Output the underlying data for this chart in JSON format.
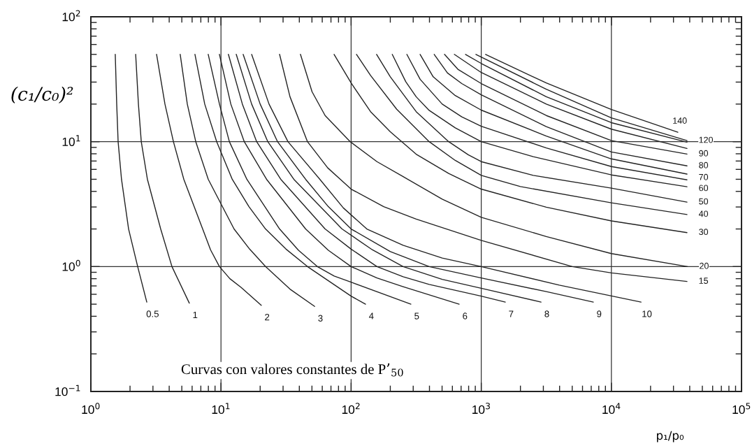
{
  "chart_data": {
    "type": "line",
    "xlabel": "p₁/p₀",
    "ylabel": "(c₁/c₀)²",
    "log": "xy",
    "grid": true,
    "xlim": [
      1,
      100000
    ],
    "ylim": [
      0.1,
      100
    ],
    "xticks": [
      {
        "value": 1,
        "label": "10$^{0}$"
      },
      {
        "value": 10,
        "label": "10$^{1}$"
      },
      {
        "value": 100,
        "label": "10$^{2}$"
      },
      {
        "value": 1000,
        "label": "10$^{3}$"
      },
      {
        "value": 10000,
        "label": "10$^{4}$"
      },
      {
        "value": 100000,
        "label": "10$^{5}$"
      },
      {
        "value": 2,
        "label": null
      },
      {
        "value": 3,
        "label": null
      },
      {
        "value": 4,
        "label": null
      },
      {
        "value": 5,
        "label": null
      },
      {
        "value": 6,
        "label": null
      },
      {
        "value": 7,
        "label": null
      },
      {
        "value": 8,
        "label": null
      },
      {
        "value": 9,
        "label": null
      },
      {
        "value": 20,
        "label": null
      },
      {
        "value": 30,
        "label": null
      },
      {
        "value": 40,
        "label": null
      },
      {
        "value": 50,
        "label": null
      },
      {
        "value": 60,
        "label": null
      },
      {
        "value": 70,
        "label": null
      },
      {
        "value": 80,
        "label": null
      },
      {
        "value": 90,
        "label": null
      },
      {
        "value": 200,
        "label": null
      },
      {
        "value": 300,
        "label": null
      },
      {
        "value": 400,
        "label": null
      },
      {
        "value": 500,
        "label": null
      },
      {
        "value": 600,
        "label": null
      },
      {
        "value": 700,
        "label": null
      },
      {
        "value": 800,
        "label": null
      },
      {
        "value": 900,
        "label": null
      },
      {
        "value": 2000,
        "label": null
      },
      {
        "value": 3000,
        "label": null
      },
      {
        "value": 4000,
        "label": null
      },
      {
        "value": 5000,
        "label": null
      },
      {
        "value": 6000,
        "label": null
      },
      {
        "value": 7000,
        "label": null
      },
      {
        "value": 8000,
        "label": null
      },
      {
        "value": 9000,
        "label": null
      },
      {
        "value": 20000,
        "label": null
      },
      {
        "value": 30000,
        "label": null
      },
      {
        "value": 40000,
        "label": null
      },
      {
        "value": 50000,
        "label": null
      },
      {
        "value": 60000,
        "label": null
      },
      {
        "value": 70000,
        "label": null
      },
      {
        "value": 80000,
        "label": null
      },
      {
        "value": 90000,
        "label": null
      }
    ],
    "yticks": [
      {
        "value": 0.1,
        "label": "10$^{−1}$"
      },
      {
        "value": 1,
        "label": "10$^{0}$"
      },
      {
        "value": 10,
        "label": "10$^{1}$"
      },
      {
        "value": 100,
        "label": "10$^{2}$"
      },
      {
        "value": 0.2,
        "label": null
      },
      {
        "value": 0.3,
        "label": null
      },
      {
        "value": 0.4,
        "label": null
      },
      {
        "value": 0.5,
        "label": null
      },
      {
        "value": 0.6,
        "label": null
      },
      {
        "value": 0.7,
        "label": null
      },
      {
        "value": 0.8,
        "label": null
      },
      {
        "value": 0.9,
        "label": null
      },
      {
        "value": 2,
        "label": null
      },
      {
        "value": 3,
        "label": null
      },
      {
        "value": 4,
        "label": null
      },
      {
        "value": 5,
        "label": null
      },
      {
        "value": 6,
        "label": null
      },
      {
        "value": 7,
        "label": null
      },
      {
        "value": 8,
        "label": null
      },
      {
        "value": 9,
        "label": null
      },
      {
        "value": 20,
        "label": null
      },
      {
        "value": 30,
        "label": null
      },
      {
        "value": 40,
        "label": null
      },
      {
        "value": 50,
        "label": null
      },
      {
        "value": 60,
        "label": null
      },
      {
        "value": 70,
        "label": null
      },
      {
        "value": 80,
        "label": null
      },
      {
        "value": 90,
        "label": null
      }
    ],
    "annotations": [
      "Curvas con valores constantes de P’$_{50}$"
    ],
    "series": [
      {
        "name": "0.5",
        "color": "#222222",
        "x": [
          1.54,
          1.58,
          1.62,
          1.72,
          1.95,
          2.29,
          2.69
        ],
        "values": [
          50,
          20,
          10,
          5,
          2,
          1,
          0.52
        ]
      },
      {
        "name": "1",
        "color": "#222222",
        "x": [
          2.21,
          2.32,
          2.44,
          2.72,
          3.44,
          4.2,
          5.71
        ],
        "values": [
          50,
          20,
          10,
          5,
          2,
          1,
          0.51
        ]
      },
      {
        "name": "2",
        "color": "#222222",
        "x": [
          3.2,
          3.71,
          4.31,
          5.18,
          7.23,
          8.32,
          9.73,
          11.7,
          14.3,
          20.4
        ],
        "values": [
          50,
          20,
          10,
          5,
          2,
          1.36,
          1,
          0.8,
          0.68,
          0.49
        ]
      },
      {
        "name": "3",
        "color": "#222222",
        "x": [
          4.86,
          5.51,
          6.4,
          7.98,
          12.6,
          16.6,
          22.0,
          33.9,
          52.4
        ],
        "values": [
          50,
          20,
          10,
          5,
          2,
          1.38,
          1,
          0.66,
          0.48
        ]
      },
      {
        "name": "4",
        "color": "#222222",
        "x": [
          6.31,
          7.5,
          9.27,
          12.2,
          16.4,
          22.0,
          31.6,
          46.2,
          100,
          129
        ],
        "values": [
          50,
          20,
          10,
          5,
          3.02,
          2,
          1.38,
          1,
          0.58,
          0.5
        ]
      },
      {
        "name": "5",
        "color": "#222222",
        "x": [
          7.98,
          9.73,
          11.6,
          15.8,
          28.2,
          39.4,
          55.0,
          74.1,
          100,
          288
        ],
        "values": [
          50,
          20,
          10,
          5,
          2,
          1.35,
          1,
          0.84,
          0.75,
          0.5
        ]
      },
      {
        "name": "6",
        "color": "#222222",
        "x": [
          9.73,
          11.9,
          15.1,
          22.4,
          44.7,
          66.8,
          100,
          158,
          251,
          676
        ],
        "values": [
          50,
          20,
          10,
          5,
          2,
          1.35,
          1,
          0.81,
          0.69,
          0.5
        ]
      },
      {
        "name": "7",
        "color": "#222222",
        "x": [
          11.4,
          14.6,
          18.8,
          28.8,
          63.1,
          100,
          158,
          251,
          398,
          1000,
          1530
        ],
        "values": [
          50,
          20,
          10,
          5,
          2,
          1.38,
          1,
          0.83,
          0.72,
          0.58,
          0.52
        ]
      },
      {
        "name": "8",
        "color": "#222222",
        "x": [
          13.1,
          17.2,
          22.9,
          36.3,
          85.1,
          146,
          251,
          501,
          1000,
          2880
        ],
        "values": [
          50,
          20,
          10,
          5,
          2,
          1.36,
          1,
          0.79,
          0.67,
          0.52
        ]
      },
      {
        "name": "9",
        "color": "#222222",
        "x": [
          14.8,
          20.0,
          27.2,
          44.7,
          66.8,
          100,
          200,
          398,
          1000,
          3160,
          7260
        ],
        "values": [
          50,
          20,
          10,
          5,
          3.02,
          2,
          1.32,
          1,
          0.81,
          0.63,
          0.52
        ]
      },
      {
        "name": "10",
        "color": "#222222",
        "x": [
          17.2,
          23.4,
          32.7,
          57.5,
          87.1,
          132,
          251,
          501,
          1000,
          3980,
          16900
        ],
        "values": [
          50,
          20,
          10,
          5,
          2.95,
          2,
          1.48,
          1.17,
          1,
          0.71,
          0.52
        ]
      },
      {
        "name": "15",
        "color": "#222222",
        "x": [
          28.2,
          33.9,
          46.2,
          66.1,
          100,
          178,
          316,
          1000,
          5010,
          10000,
          38100
        ],
        "values": [
          50,
          22.9,
          10,
          6.17,
          4.17,
          3.02,
          2.4,
          1.62,
          1,
          0.89,
          0.76
        ]
      },
      {
        "name": "20",
        "color": "#222222",
        "x": [
          40.8,
          50.1,
          63.1,
          98.4,
          158,
          251,
          501,
          1000,
          3160,
          10000,
          38500
        ],
        "values": [
          50,
          25.1,
          16.2,
          10,
          6.92,
          5.25,
          3.47,
          2.48,
          1.74,
          1.27,
          1.0
        ]
      },
      {
        "name": "30",
        "color": "#222222",
        "x": [
          74,
          100,
          141,
          200,
          316,
          562,
          1000,
          3160,
          10000,
          38100
        ],
        "values": [
          50,
          29.5,
          17.4,
          12.0,
          7.94,
          5.56,
          4.17,
          2.99,
          2.32,
          1.87
        ]
      },
      {
        "name": "40",
        "color": "#222222",
        "x": [
          110,
          141,
          224,
          398,
          631,
          1000,
          2000,
          10000,
          38100
        ],
        "values": [
          50,
          33.9,
          18.2,
          10,
          7.08,
          5.37,
          4.37,
          3.24,
          2.61
        ]
      },
      {
        "name": "50",
        "color": "#222222",
        "x": [
          157,
          200,
          316,
          562,
          794,
          1000,
          2510,
          10000,
          38100
        ],
        "values": [
          50,
          33.1,
          17.4,
          10,
          7.85,
          6.92,
          5.37,
          4.25,
          3.28
        ]
      },
      {
        "name": "60",
        "color": "#222222",
        "x": [
          207,
          263,
          316,
          398,
          631,
          1000,
          2510,
          10000,
          38100
        ],
        "values": [
          50,
          30.2,
          22.9,
          17.8,
          12.9,
          10,
          7.59,
          5.42,
          4.36
        ]
      },
      {
        "name": "70",
        "color": "#222222",
        "x": [
          268,
          339,
          501,
          708,
          1000,
          3160,
          10000,
          38100
        ],
        "values": [
          50,
          31.6,
          20,
          15.8,
          13.3,
          8.91,
          6.32,
          4.95
        ]
      },
      {
        "color": "#222222",
        "x": [
          339,
          427,
          631,
          1000,
          3160,
          10000,
          38100
        ],
        "values": [
          50,
          33.1,
          23.4,
          17.9,
          11.1,
          7.28,
          5.5
        ]
      },
      {
        "name": "80",
        "color": "#222222",
        "x": [
          435,
          550,
          708,
          1000,
          3160,
          10000,
          38100
        ],
        "values": [
          50,
          35.5,
          29.2,
          23.7,
          13.2,
          8.28,
          6.4
        ]
      },
      {
        "name": "90",
        "color": "#222222",
        "x": [
          522,
          661,
          1000,
          3160,
          10000,
          38100
        ],
        "values": [
          50,
          38,
          29.2,
          16.2,
          10.2,
          7.96
        ]
      },
      {
        "color": "#222222",
        "x": [
          621,
          1000,
          3160,
          10000,
          38100
        ],
        "values": [
          50,
          35.8,
          20,
          12.6,
          8.83
        ]
      },
      {
        "color": "#222222",
        "x": [
          757,
          1000,
          3160,
          10000,
          38100
        ],
        "values": [
          50,
          42.3,
          22.9,
          14.2,
          9.91
        ]
      },
      {
        "name": "120",
        "color": "#222222",
        "x": [
          910,
          3160,
          10000,
          38100
        ],
        "values": [
          50,
          26.3,
          15.5,
          10.2
        ]
      },
      {
        "name": "140",
        "color": "#222222",
        "x": [
          1080,
          3160,
          10000,
          32400
        ],
        "values": [
          50,
          29.5,
          18.1,
          11.9
        ]
      }
    ]
  }
}
